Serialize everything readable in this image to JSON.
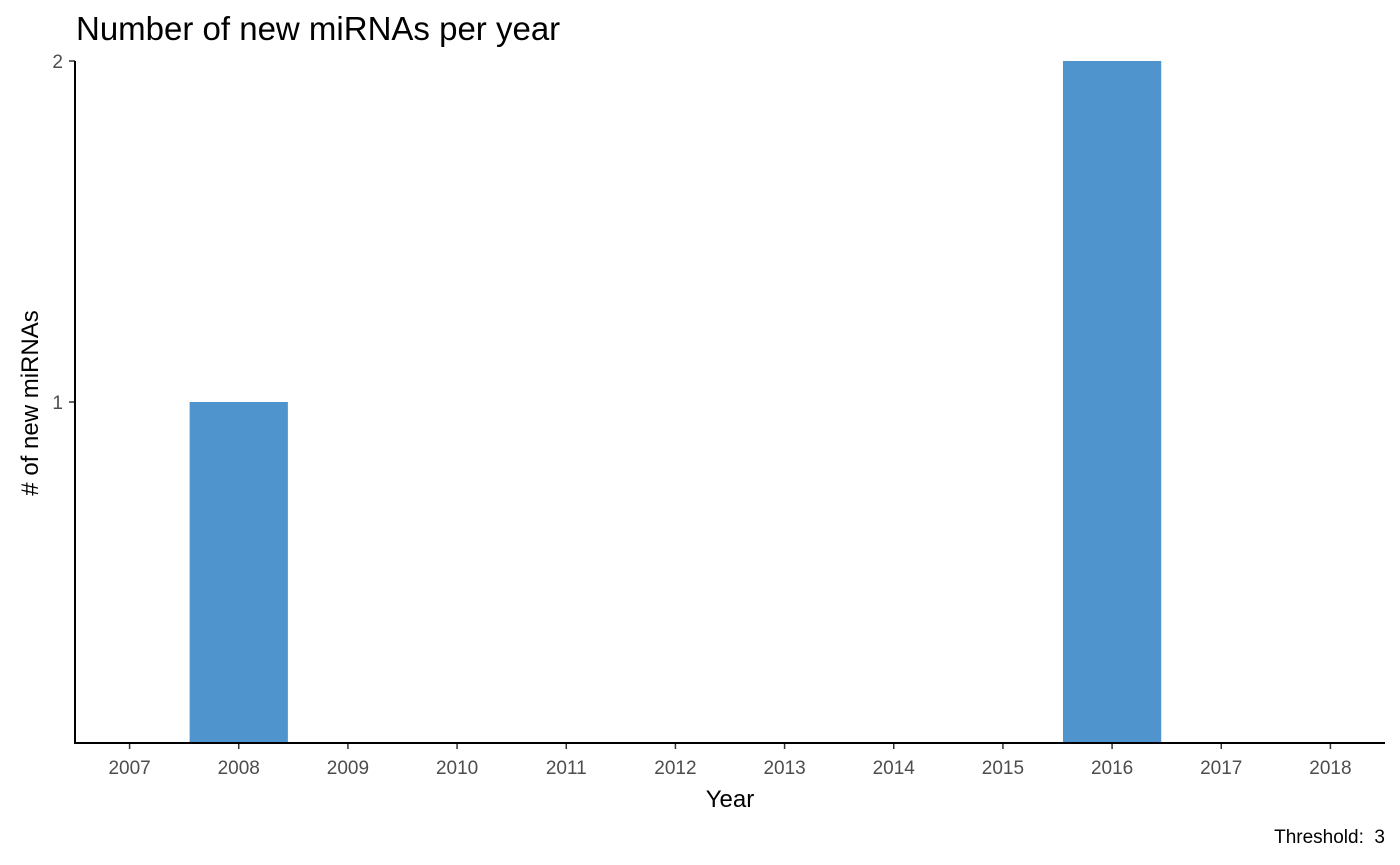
{
  "chart_data": {
    "type": "bar",
    "title": "Number of new miRNAs per year",
    "xlabel": "Year",
    "ylabel": "# of new miRNAs",
    "categories": [
      "2007",
      "2008",
      "2009",
      "2010",
      "2011",
      "2012",
      "2013",
      "2014",
      "2015",
      "2016",
      "2017",
      "2018"
    ],
    "values": [
      0,
      1,
      0,
      0,
      0,
      0,
      0,
      0,
      0,
      2,
      0,
      0
    ],
    "yticks": [
      1,
      2
    ],
    "ylim": [
      0,
      2
    ],
    "bar_color": "#4f94cd",
    "grid": false,
    "legend": "none",
    "caption": "Threshold:  3"
  }
}
